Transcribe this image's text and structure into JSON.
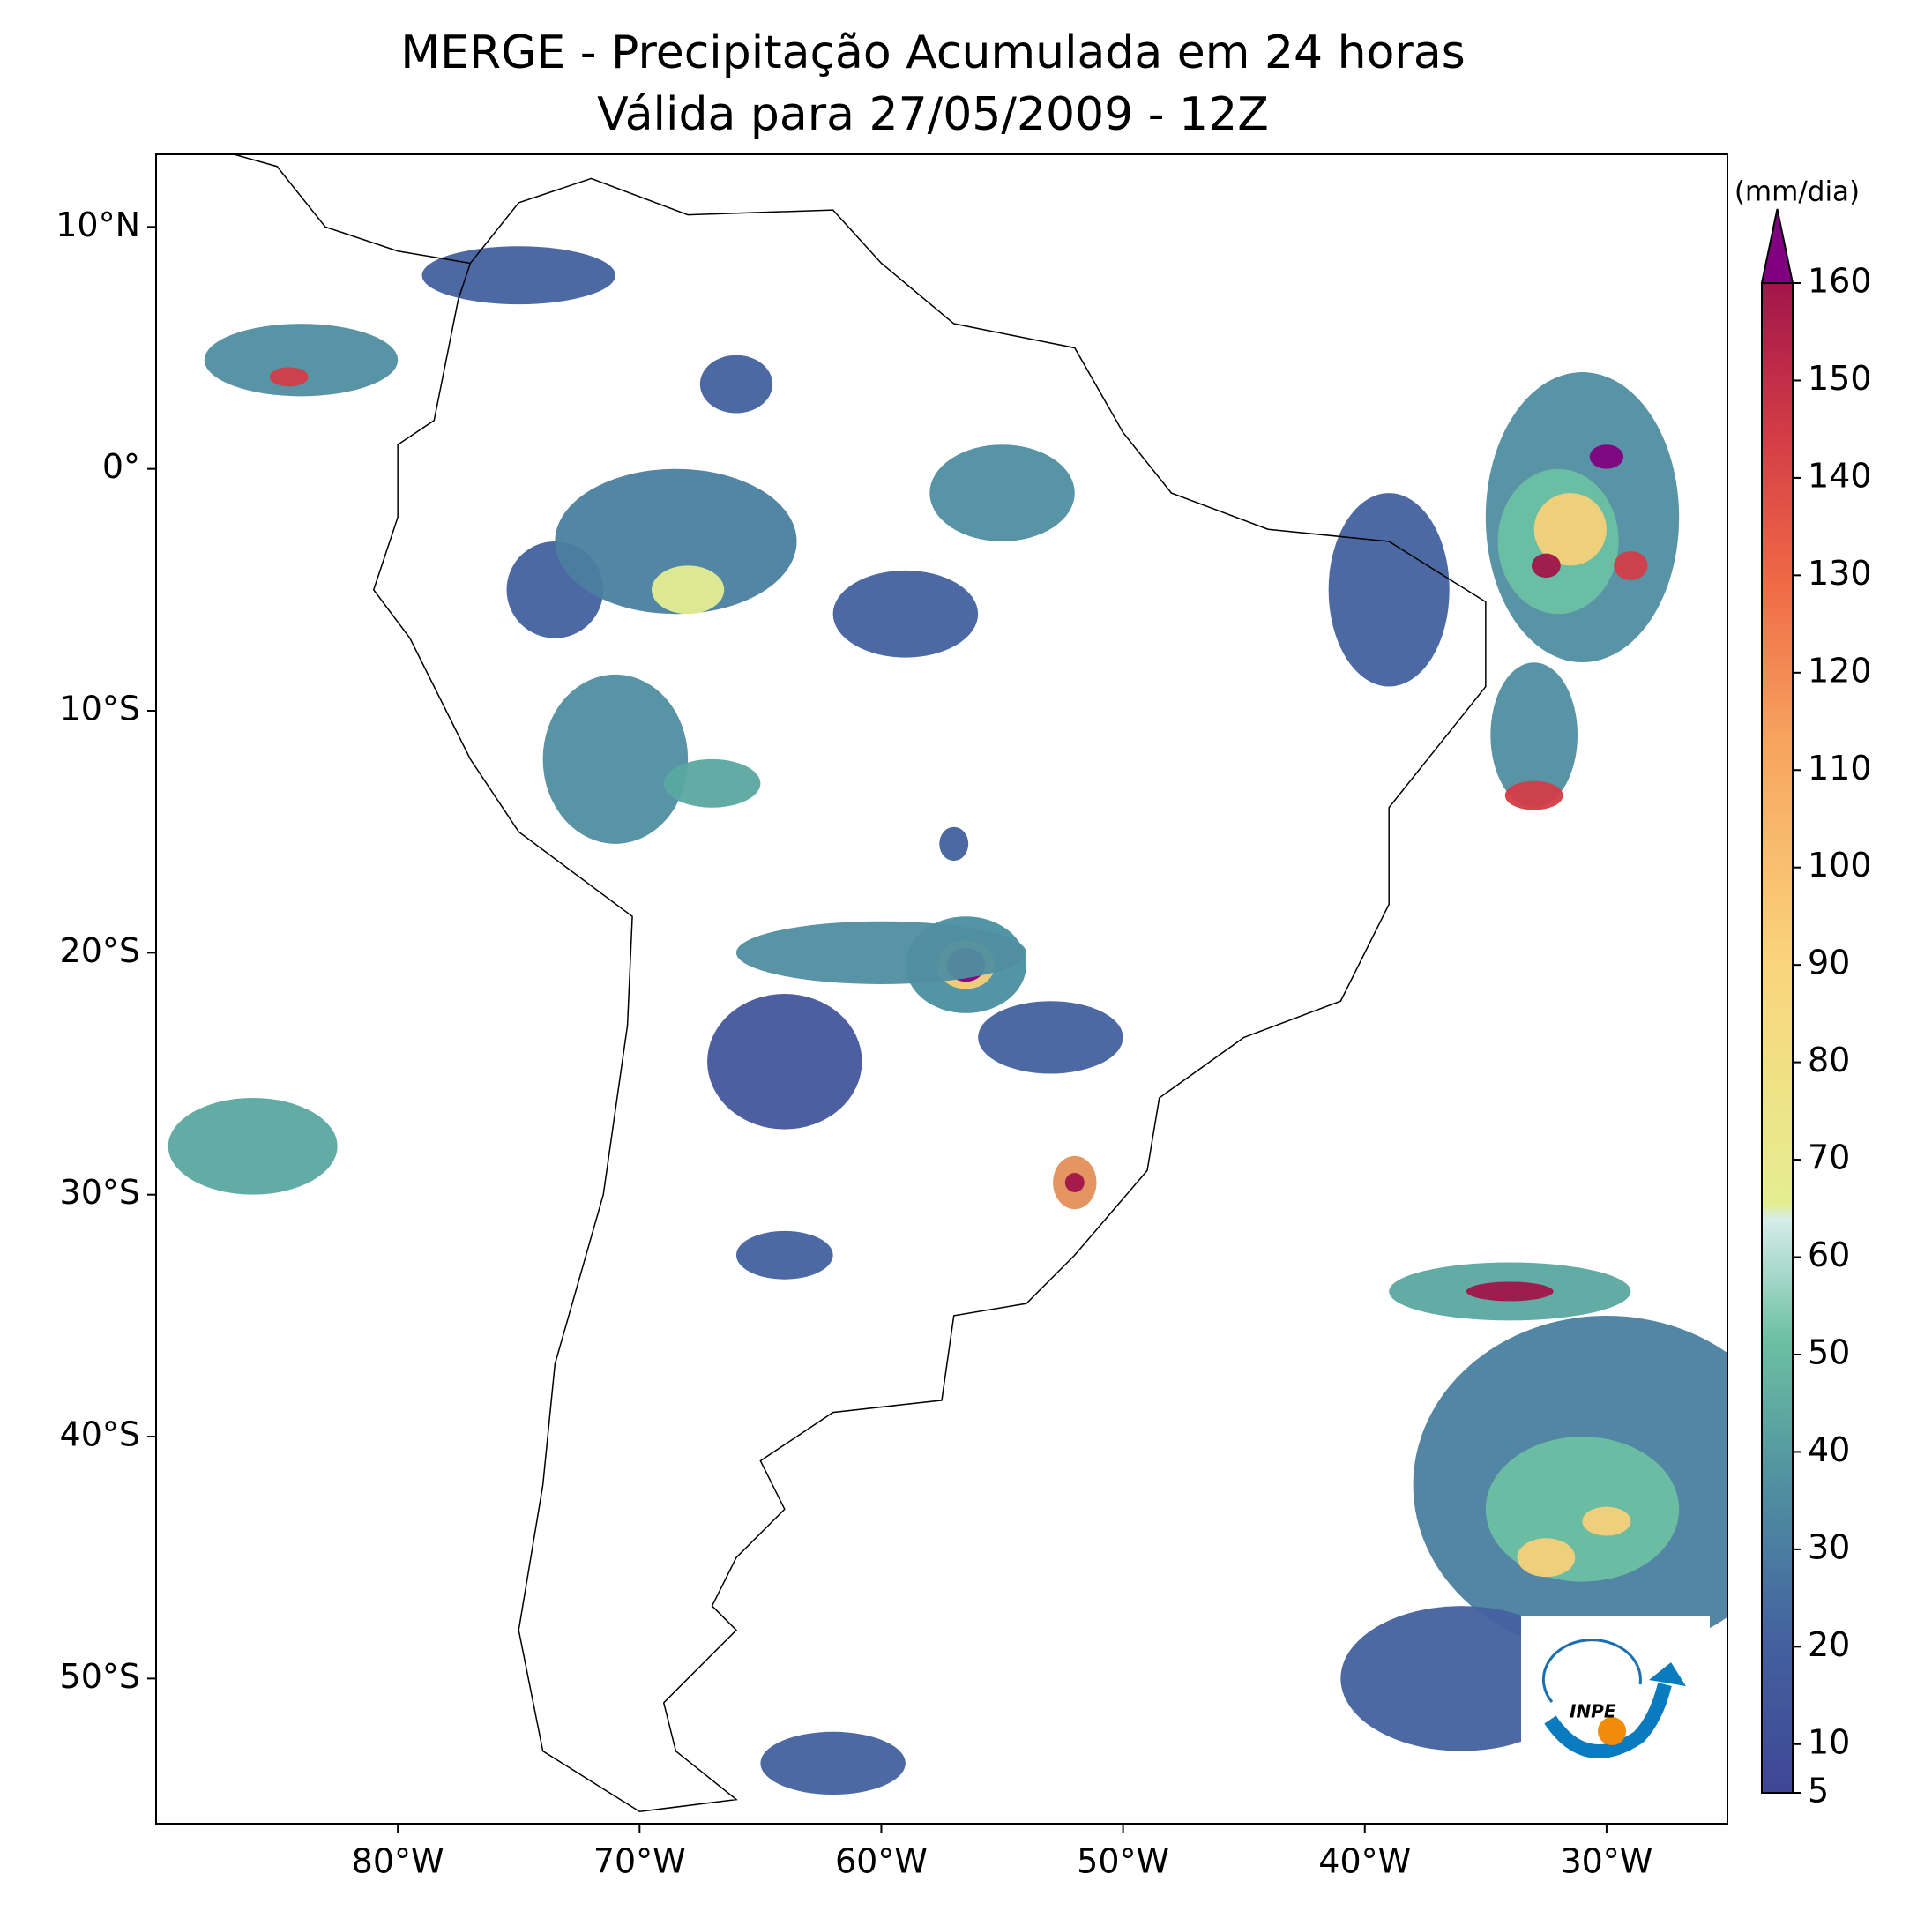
{
  "map": {
    "title": "MERGE - Precipitação Acumulada em 24 horas",
    "subtitle": "Válida para 27/05/2009 - 12Z",
    "xlim": [
      -90,
      -25
    ],
    "ylim": [
      -56,
      13
    ],
    "xticks": [
      {
        "value": -80,
        "label": "80°W"
      },
      {
        "value": -70,
        "label": "70°W"
      },
      {
        "value": -60,
        "label": "60°W"
      },
      {
        "value": -50,
        "label": "50°W"
      },
      {
        "value": -40,
        "label": "40°W"
      },
      {
        "value": -30,
        "label": "30°W"
      }
    ],
    "yticks": [
      {
        "value": 10,
        "label": "10°N"
      },
      {
        "value": 0,
        "label": "0°"
      },
      {
        "value": -10,
        "label": "10°S"
      },
      {
        "value": -20,
        "label": "20°S"
      },
      {
        "value": -30,
        "label": "30°S"
      },
      {
        "value": -40,
        "label": "40°S"
      },
      {
        "value": -50,
        "label": "50°S"
      }
    ],
    "colorbar": {
      "label": "(mm/dia)",
      "lim": [
        5,
        160
      ],
      "ticks": [
        5,
        10,
        20,
        30,
        40,
        50,
        60,
        70,
        80,
        90,
        100,
        110,
        120,
        130,
        140,
        150,
        160
      ]
    },
    "logo": "INPE"
  }
}
